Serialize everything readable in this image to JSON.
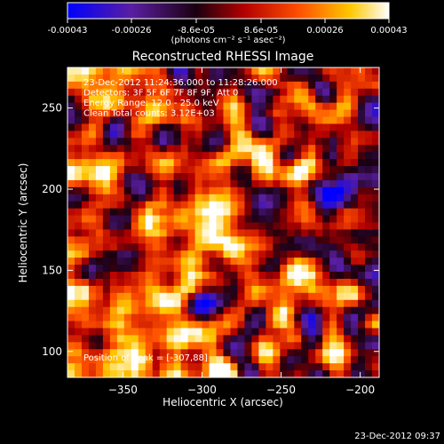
{
  "colorbar": {
    "ticks": [
      "-0.00043",
      "-0.00026",
      "-8.6e-05",
      "8.6e-05",
      "0.00026",
      "0.00043"
    ],
    "unit_label": "(photons cm⁻² s⁻¹ asec⁻²)",
    "range": [
      -0.00043,
      0.00043
    ]
  },
  "footer_timestamp": "23-Dec-2012 09:37",
  "chart_data": {
    "type": "heatmap",
    "title": "Reconstructed RHESSI Image",
    "xlabel": "Heliocentric X (arcsec)",
    "ylabel": "Heliocentric Y (arcsec)",
    "xlim": [
      -385,
      -188
    ],
    "ylim": [
      84,
      275
    ],
    "x_ticks": [
      -350,
      -300,
      -250,
      -200
    ],
    "y_ticks": [
      100,
      150,
      200,
      250
    ],
    "colormap": "blue-purple-black-red-orange-yellow-white",
    "annotations": [
      "23-Dec-2012 11:24:36.000 to 11:28:26.000",
      "Detectors: 3F 5F 6F 7F 8F 9F, Att 0",
      "Energy Range: 12.0 - 25.0 keV",
      "Clean    Total counts: 3.12E+03"
    ],
    "peak_label": "Position of Peak = [-307,88]",
    "peak_position": [
      -307,
      88
    ]
  }
}
